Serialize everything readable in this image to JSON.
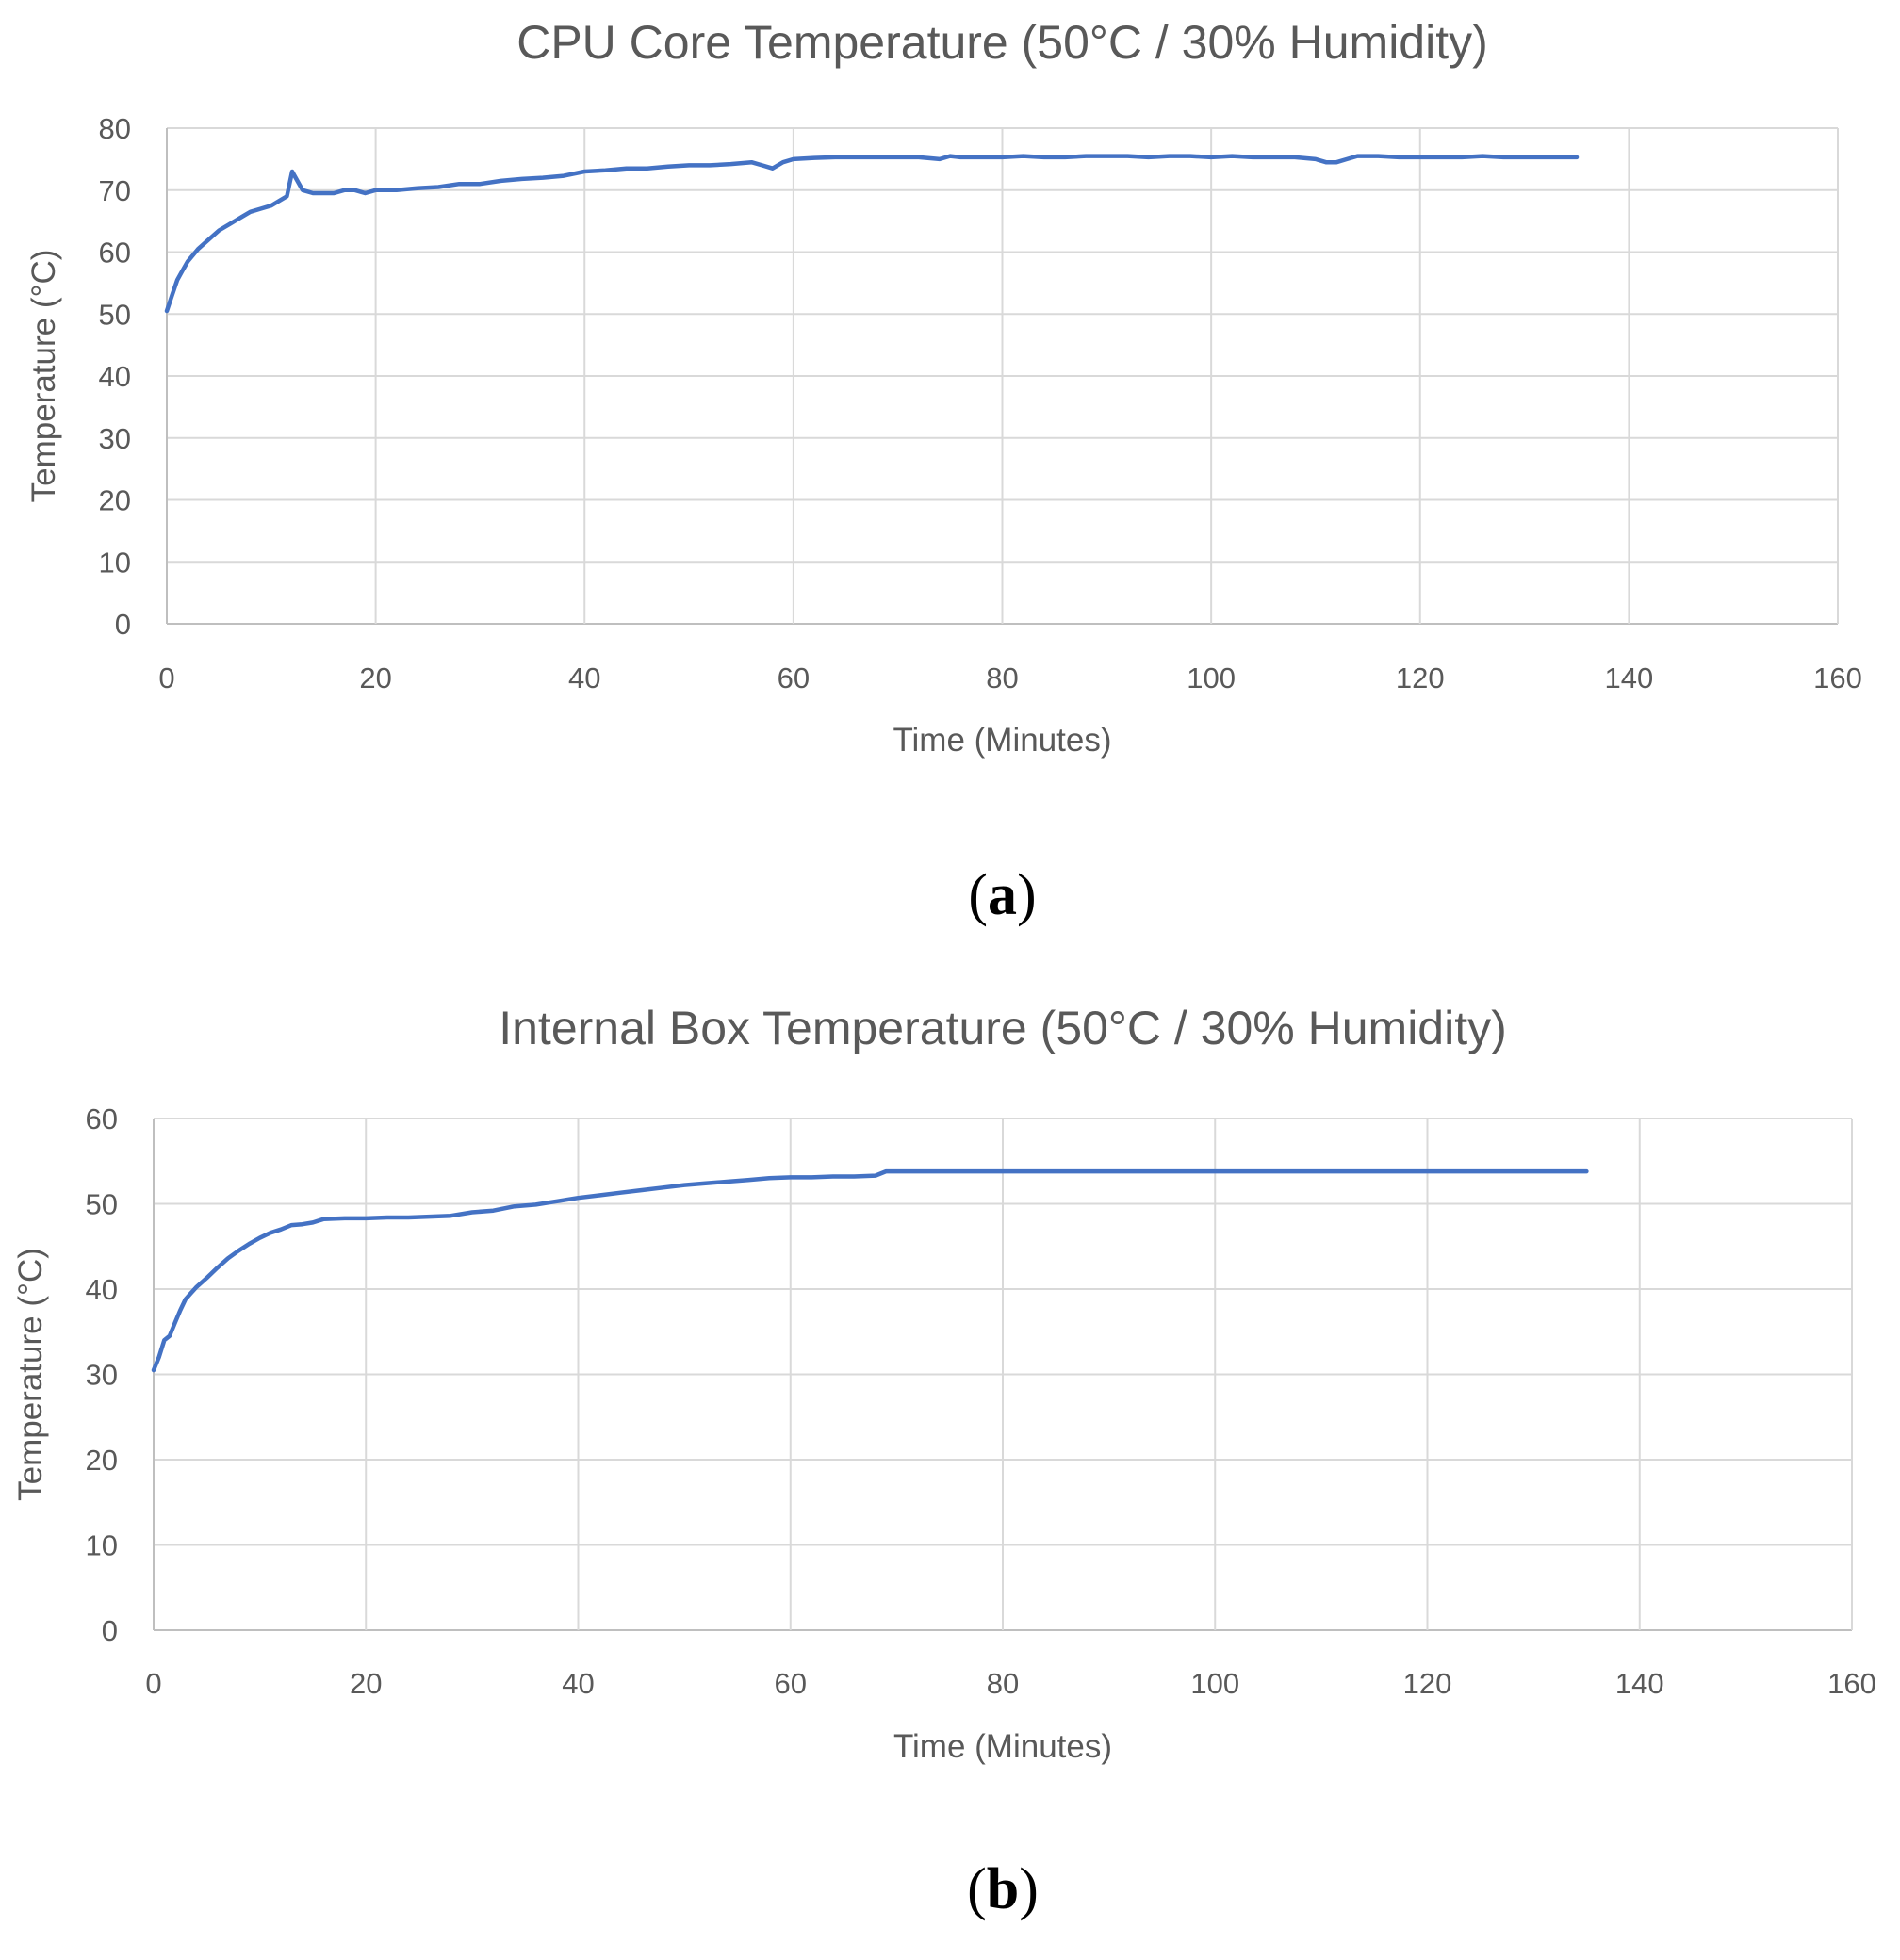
{
  "colors": {
    "series": "#4472c4",
    "grid": "#d9d9d9",
    "text": "#595959"
  },
  "chart_data": [
    {
      "type": "line",
      "panel": "(a)",
      "panel_letter": "a",
      "title": "CPU Core Temperature (50°C / 30% Humidity)",
      "xlabel": "Time (Minutes)",
      "ylabel": "Temperature (°C)",
      "xlim": [
        0,
        160
      ],
      "ylim": [
        0,
        80
      ],
      "xticks": [
        0,
        20,
        40,
        60,
        80,
        100,
        120,
        140,
        160
      ],
      "yticks": [
        0,
        10,
        20,
        30,
        40,
        50,
        60,
        70,
        80
      ],
      "grid": true,
      "legend": "none",
      "series": [
        {
          "x": [
            0,
            0.5,
            1,
            1.5,
            2,
            3,
            4,
            5,
            6,
            7,
            8,
            9,
            10,
            11,
            11.5,
            12,
            12.5,
            13,
            14,
            15,
            16,
            17,
            18,
            19,
            20,
            22,
            24,
            26,
            28,
            30,
            32,
            34,
            36,
            38,
            40,
            42,
            44,
            46,
            48,
            50,
            52,
            54,
            56,
            57,
            58,
            59,
            60,
            62,
            64,
            66,
            68,
            70,
            72,
            74,
            75,
            76,
            78,
            80,
            82,
            84,
            86,
            88,
            90,
            92,
            94,
            96,
            98,
            100,
            102,
            104,
            106,
            108,
            110,
            111,
            112,
            113,
            114,
            116,
            118,
            120,
            122,
            124,
            126,
            128,
            130,
            132,
            135
          ],
          "y": [
            50.5,
            53,
            55.5,
            57,
            58.5,
            60.5,
            62,
            63.5,
            64.5,
            65.5,
            66.5,
            67,
            67.5,
            68.5,
            69,
            73,
            71.5,
            70,
            69.5,
            69.5,
            69.5,
            70,
            70,
            69.5,
            70,
            70,
            70.3,
            70.5,
            71,
            71,
            71.5,
            71.8,
            72,
            72.3,
            73,
            73.2,
            73.5,
            73.5,
            73.8,
            74,
            74,
            74.2,
            74.5,
            74,
            73.5,
            74.5,
            75,
            75.2,
            75.3,
            75.3,
            75.3,
            75.3,
            75.3,
            75,
            75.5,
            75.3,
            75.3,
            75.3,
            75.5,
            75.3,
            75.3,
            75.5,
            75.5,
            75.5,
            75.3,
            75.5,
            75.5,
            75.3,
            75.5,
            75.3,
            75.3,
            75.3,
            75,
            74.5,
            74.5,
            75,
            75.5,
            75.5,
            75.3,
            75.3,
            75.3,
            75.3,
            75.5,
            75.3,
            75.3,
            75.3,
            75.3
          ]
        }
      ]
    },
    {
      "type": "line",
      "panel": "(b)",
      "panel_letter": "b",
      "title": "Internal Box Temperature (50°C / 30% Humidity)",
      "xlabel": "Time (Minutes)",
      "ylabel": "Temperature (°C)",
      "xlim": [
        0,
        160
      ],
      "ylim": [
        0,
        60
      ],
      "xticks": [
        0,
        20,
        40,
        60,
        80,
        100,
        120,
        140,
        160
      ],
      "yticks": [
        0,
        10,
        20,
        30,
        40,
        50,
        60
      ],
      "grid": true,
      "legend": "none",
      "series": [
        {
          "x": [
            0,
            0.5,
            1,
            1.5,
            2,
            2.5,
            3,
            3.5,
            4,
            5,
            6,
            7,
            8,
            9,
            10,
            11,
            12,
            13,
            14,
            15,
            16,
            18,
            20,
            22,
            24,
            26,
            28,
            30,
            32,
            34,
            36,
            38,
            40,
            42,
            44,
            46,
            48,
            50,
            52,
            54,
            56,
            58,
            60,
            62,
            64,
            66,
            68,
            69,
            70,
            80,
            90,
            100,
            110,
            120,
            130,
            135
          ],
          "y": [
            30.5,
            32,
            34,
            34.5,
            36,
            37.5,
            38.8,
            39.5,
            40.2,
            41.3,
            42.5,
            43.6,
            44.5,
            45.3,
            46,
            46.6,
            47,
            47.5,
            47.6,
            47.8,
            48.2,
            48.3,
            48.3,
            48.4,
            48.4,
            48.5,
            48.6,
            49,
            49.2,
            49.7,
            49.9,
            50.3,
            50.7,
            51,
            51.3,
            51.6,
            51.9,
            52.2,
            52.4,
            52.6,
            52.8,
            53,
            53.1,
            53.1,
            53.2,
            53.2,
            53.3,
            53.8,
            53.8,
            53.8,
            53.8,
            53.8,
            53.8,
            53.8,
            53.8,
            53.8
          ]
        }
      ]
    }
  ]
}
